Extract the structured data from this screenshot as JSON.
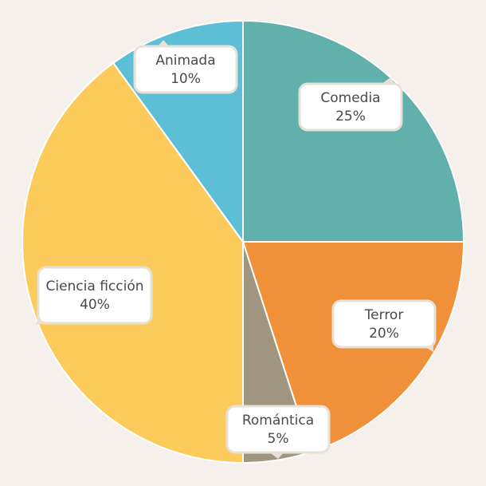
{
  "chart_data": {
    "type": "pie",
    "title": "",
    "slices": [
      {
        "label": "Comedia",
        "value": 25,
        "display": "25%",
        "color": "#62b0ac"
      },
      {
        "label": "Terror",
        "value": 20,
        "display": "20%",
        "color": "#f0913a"
      },
      {
        "label": "Romántica",
        "value": 5,
        "display": "5%",
        "color": "#a0967f"
      },
      {
        "label": "Ciencia ficción",
        "value": 40,
        "display": "40%",
        "color": "#fccb5b"
      },
      {
        "label": "Animada",
        "value": 10,
        "display": "10%",
        "color": "#5dbfd5"
      }
    ],
    "start_angle": "12 o'clock",
    "direction": "clockwise",
    "slice_border_color": "#ffffff",
    "label_box_fill": "#ffffff",
    "label_box_border": "#e6e1d6"
  }
}
